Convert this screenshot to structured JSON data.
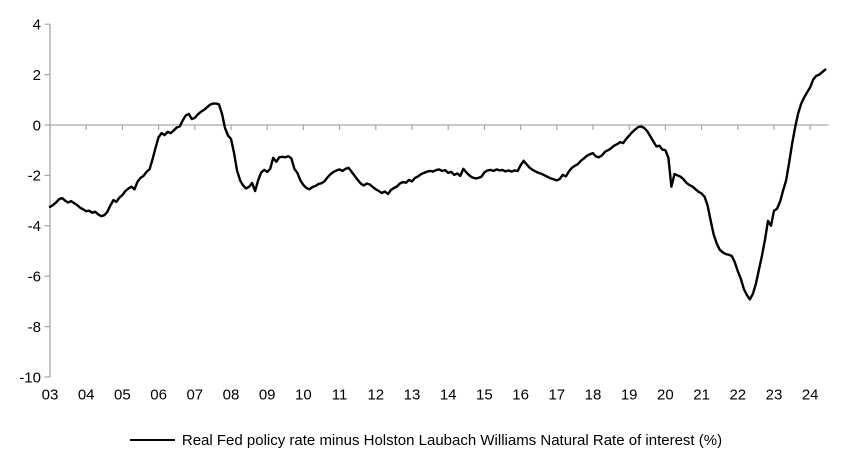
{
  "figure": {
    "background": "#FFFFFF",
    "axis_color": "#A6A6A6",
    "text_color": "#000000"
  },
  "chart_data": {
    "type": "line",
    "title": "",
    "legend_label": "Real Fed policy rate minus Holston Laubach Williams Natural Rate of interest (%)",
    "legend_position": "bottom-center",
    "grid": "zero-line-only",
    "ylim": [
      -10,
      4
    ],
    "y_ticks": [
      4,
      2,
      0,
      -2,
      -4,
      -6,
      -8,
      -10
    ],
    "x_tick_labels": [
      "03",
      "04",
      "05",
      "06",
      "07",
      "08",
      "09",
      "10",
      "11",
      "12",
      "13",
      "14",
      "15",
      "16",
      "17",
      "18",
      "19",
      "20",
      "21",
      "22",
      "23",
      "24"
    ],
    "x_axis_years": [
      2003,
      2024
    ],
    "series": [
      {
        "name": "Real Fed policy rate minus Holston Laubach Williams Natural Rate of interest (%)",
        "color": "#000000",
        "frequency": "monthly",
        "start": "2003-01",
        "end": "2024-06",
        "values": [
          -3.25,
          -3.18,
          -3.08,
          -2.95,
          -2.9,
          -3.0,
          -3.08,
          -3.02,
          -3.1,
          -3.18,
          -3.28,
          -3.35,
          -3.42,
          -3.4,
          -3.48,
          -3.44,
          -3.55,
          -3.62,
          -3.58,
          -3.45,
          -3.2,
          -2.98,
          -3.05,
          -2.88,
          -2.78,
          -2.62,
          -2.52,
          -2.45,
          -2.55,
          -2.25,
          -2.1,
          -2.02,
          -1.86,
          -1.75,
          -1.35,
          -0.9,
          -0.48,
          -0.32,
          -0.4,
          -0.27,
          -0.32,
          -0.22,
          -0.1,
          -0.06,
          0.18,
          0.38,
          0.44,
          0.24,
          0.28,
          0.42,
          0.52,
          0.6,
          0.7,
          0.8,
          0.85,
          0.85,
          0.82,
          0.45,
          -0.12,
          -0.42,
          -0.55,
          -1.1,
          -1.8,
          -2.2,
          -2.4,
          -2.52,
          -2.45,
          -2.3,
          -2.62,
          -2.2,
          -1.88,
          -1.78,
          -1.86,
          -1.74,
          -1.3,
          -1.46,
          -1.28,
          -1.26,
          -1.28,
          -1.24,
          -1.32,
          -1.74,
          -1.9,
          -2.2,
          -2.38,
          -2.5,
          -2.55,
          -2.46,
          -2.42,
          -2.34,
          -2.31,
          -2.23,
          -2.08,
          -1.95,
          -1.86,
          -1.8,
          -1.76,
          -1.82,
          -1.74,
          -1.7,
          -1.86,
          -2.02,
          -2.18,
          -2.32,
          -2.4,
          -2.32,
          -2.36,
          -2.46,
          -2.55,
          -2.62,
          -2.7,
          -2.64,
          -2.74,
          -2.58,
          -2.5,
          -2.44,
          -2.32,
          -2.26,
          -2.29,
          -2.18,
          -2.24,
          -2.1,
          -2.04,
          -1.95,
          -1.9,
          -1.85,
          -1.82,
          -1.85,
          -1.79,
          -1.76,
          -1.82,
          -1.79,
          -1.9,
          -1.86,
          -1.98,
          -1.92,
          -2.02,
          -1.74,
          -1.88,
          -2.0,
          -2.08,
          -2.12,
          -2.1,
          -2.05,
          -1.88,
          -1.8,
          -1.78,
          -1.82,
          -1.76,
          -1.8,
          -1.78,
          -1.84,
          -1.8,
          -1.85,
          -1.8,
          -1.83,
          -1.6,
          -1.42,
          -1.56,
          -1.7,
          -1.78,
          -1.85,
          -1.9,
          -1.94,
          -2.0,
          -2.06,
          -2.12,
          -2.16,
          -2.2,
          -2.14,
          -1.98,
          -2.04,
          -1.84,
          -1.7,
          -1.62,
          -1.55,
          -1.42,
          -1.32,
          -1.22,
          -1.16,
          -1.12,
          -1.25,
          -1.28,
          -1.2,
          -1.06,
          -1.0,
          -0.92,
          -0.82,
          -0.76,
          -0.68,
          -0.72,
          -0.55,
          -0.42,
          -0.28,
          -0.18,
          -0.08,
          -0.06,
          -0.12,
          -0.25,
          -0.45,
          -0.65,
          -0.85,
          -0.82,
          -0.98,
          -1.0,
          -1.3,
          -2.45,
          -1.95,
          -2.0,
          -2.05,
          -2.15,
          -2.3,
          -2.38,
          -2.45,
          -2.55,
          -2.65,
          -2.72,
          -2.85,
          -3.2,
          -3.8,
          -4.35,
          -4.7,
          -4.95,
          -5.05,
          -5.12,
          -5.15,
          -5.2,
          -5.45,
          -5.8,
          -6.1,
          -6.5,
          -6.75,
          -6.92,
          -6.7,
          -6.3,
          -5.75,
          -5.2,
          -4.55,
          -3.8,
          -4.0,
          -3.4,
          -3.32,
          -3.05,
          -2.6,
          -2.2,
          -1.5,
          -0.75,
          -0.1,
          0.45,
          0.85,
          1.1,
          1.3,
          1.5,
          1.8,
          1.95,
          2.0,
          2.1,
          2.2
        ]
      }
    ]
  }
}
